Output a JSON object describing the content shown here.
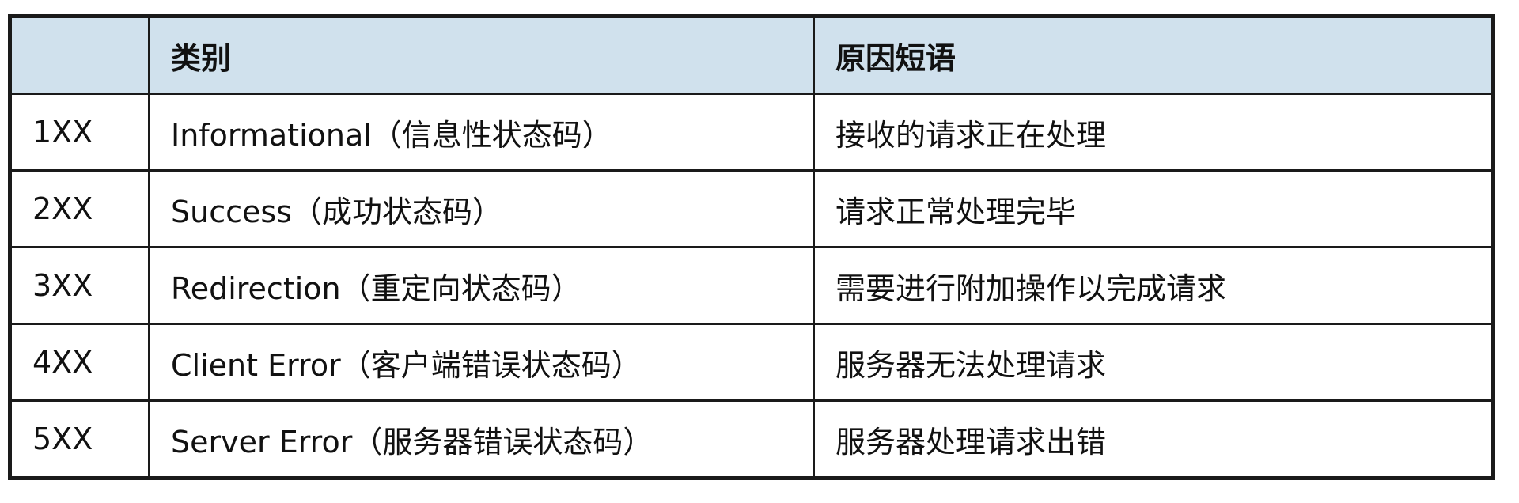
{
  "table": {
    "headers": [
      "",
      "类别",
      "原因短语"
    ],
    "rows": [
      [
        "1XX",
        "Informational（信息性状态码）",
        "接收的请求正在处理"
      ],
      [
        "2XX",
        "Success（成功状态码）",
        "请求正常处理完毕"
      ],
      [
        "3XX",
        "Redirection（重定向状态码）",
        "需要进行附加操作以完成请求"
      ],
      [
        "4XX",
        "Client Error（客户端错误状态码）",
        "服务器无法处理请求"
      ],
      [
        "5XX",
        "Server Error（服务器错误状态码）",
        "服务器处理请求出错"
      ]
    ]
  },
  "colors": {
    "header_bg": "#d0e1ed",
    "border": "#1a1a1a"
  }
}
